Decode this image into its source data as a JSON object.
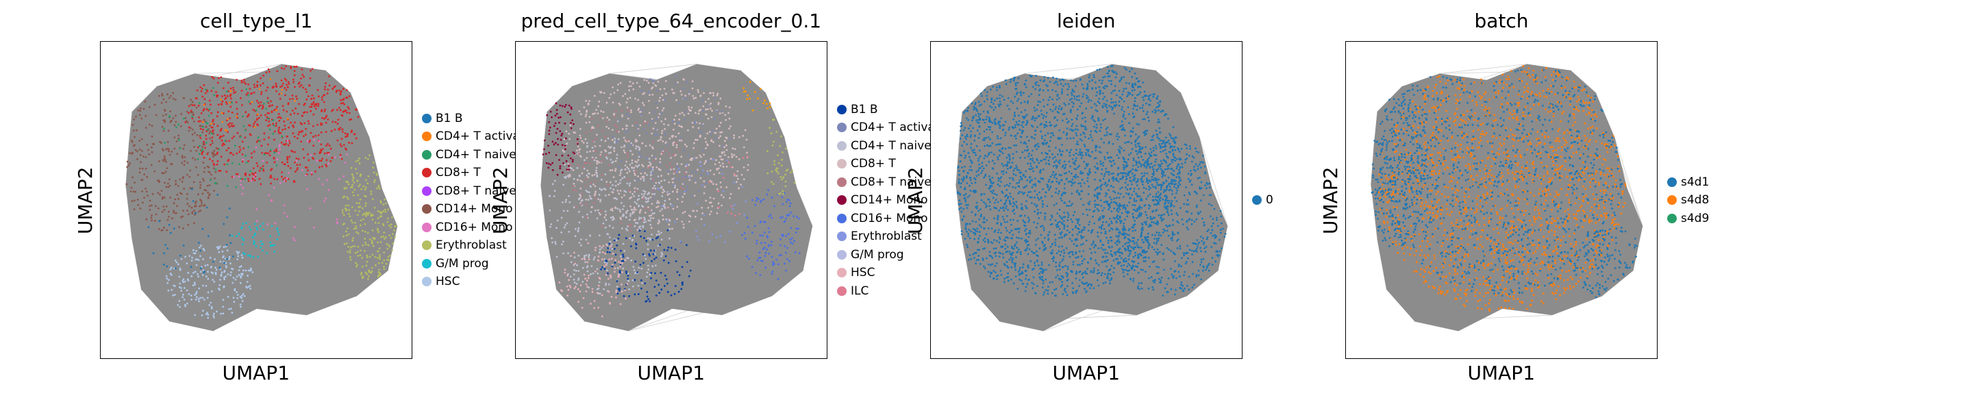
{
  "chart_data": [
    {
      "type": "scatter",
      "title": "cell_type_l1",
      "xlabel": "UMAP1",
      "ylabel": "UMAP2",
      "grid": false,
      "legend_position": "right",
      "background_color": "#8c8c8c",
      "legend": [
        {
          "label": "B1 B",
          "color": "#1f77b4"
        },
        {
          "label": "CD4+ T activa",
          "color": "#ff7f0e"
        },
        {
          "label": "CD4+ T naive",
          "color": "#279e68"
        },
        {
          "label": "CD8+ T",
          "color": "#d62728"
        },
        {
          "label": "CD8+ T naive",
          "color": "#aa40fc"
        },
        {
          "label": "CD14+ Mono",
          "color": "#8c564b"
        },
        {
          "label": "CD16+ Mono",
          "color": "#e377c2"
        },
        {
          "label": "Erythroblast",
          "color": "#b5bd61"
        },
        {
          "label": "G/M prog",
          "color": "#17becf"
        },
        {
          "label": "HSC",
          "color": "#aec7e8"
        }
      ],
      "regions": [
        {
          "color": "#d62728",
          "x": 0.55,
          "y": 0.25,
          "rx": 0.28,
          "ry": 0.2,
          "density": 0.55
        },
        {
          "color": "#8c564b",
          "x": 0.22,
          "y": 0.38,
          "rx": 0.16,
          "ry": 0.22,
          "density": 0.45
        },
        {
          "color": "#aec7e8",
          "x": 0.35,
          "y": 0.75,
          "rx": 0.14,
          "ry": 0.12,
          "density": 0.6
        },
        {
          "color": "#b5bd61",
          "x": 0.86,
          "y": 0.55,
          "rx": 0.09,
          "ry": 0.2,
          "density": 0.7
        },
        {
          "color": "#17becf",
          "x": 0.5,
          "y": 0.62,
          "rx": 0.08,
          "ry": 0.06,
          "density": 0.5
        },
        {
          "color": "#279e68",
          "x": 0.4,
          "y": 0.3,
          "rx": 0.2,
          "ry": 0.16,
          "density": 0.1
        },
        {
          "color": "#e377c2",
          "x": 0.62,
          "y": 0.45,
          "rx": 0.2,
          "ry": 0.18,
          "density": 0.08
        },
        {
          "color": "#1f77b4",
          "x": 0.3,
          "y": 0.6,
          "rx": 0.15,
          "ry": 0.14,
          "density": 0.08
        },
        {
          "color": "#ff7f0e",
          "x": 0.45,
          "y": 0.2,
          "rx": 0.18,
          "ry": 0.1,
          "density": 0.06
        }
      ]
    },
    {
      "type": "scatter",
      "title": "pred_cell_type_64_encoder_0.1",
      "xlabel": "UMAP1",
      "ylabel": "UMAP2",
      "grid": false,
      "legend_position": "right",
      "background_color": "#8c8c8c",
      "legend": [
        {
          "label": "B1 B",
          "color": "#023fa5"
        },
        {
          "label": "CD4+ T activa",
          "color": "#7d87b9"
        },
        {
          "label": "CD4+ T naive",
          "color": "#bec1d4"
        },
        {
          "label": "CD8+ T",
          "color": "#d6bcc0"
        },
        {
          "label": "CD8+ T naive",
          "color": "#bb7784"
        },
        {
          "label": "CD14+ Mono",
          "color": "#8e063b"
        },
        {
          "label": "CD16+ Mono",
          "color": "#4a6fe3"
        },
        {
          "label": "Erythroblast",
          "color": "#8595e1"
        },
        {
          "label": "G/M prog",
          "color": "#b5bbe3"
        },
        {
          "label": "HSC",
          "color": "#e6afb9"
        },
        {
          "label": "ILC",
          "color": "#e07b91"
        }
      ],
      "regions": [
        {
          "color": "#d6bcc0",
          "x": 0.45,
          "y": 0.35,
          "rx": 0.3,
          "ry": 0.25,
          "density": 0.4
        },
        {
          "color": "#bec1d4",
          "x": 0.3,
          "y": 0.55,
          "rx": 0.2,
          "ry": 0.25,
          "density": 0.35
        },
        {
          "color": "#8e063b",
          "x": 0.14,
          "y": 0.3,
          "rx": 0.06,
          "ry": 0.12,
          "density": 0.5
        },
        {
          "color": "#023fa5",
          "x": 0.42,
          "y": 0.7,
          "rx": 0.15,
          "ry": 0.12,
          "density": 0.3
        },
        {
          "color": "#4a6fe3",
          "x": 0.82,
          "y": 0.6,
          "rx": 0.1,
          "ry": 0.15,
          "density": 0.35
        },
        {
          "color": "#ff9900",
          "x": 0.8,
          "y": 0.15,
          "rx": 0.08,
          "ry": 0.08,
          "density": 0.4
        },
        {
          "color": "#b5bd61",
          "x": 0.86,
          "y": 0.35,
          "rx": 0.06,
          "ry": 0.15,
          "density": 0.3
        },
        {
          "color": "#e6afb9",
          "x": 0.25,
          "y": 0.75,
          "rx": 0.12,
          "ry": 0.12,
          "density": 0.3
        },
        {
          "color": "#7d87b9",
          "x": 0.5,
          "y": 0.3,
          "rx": 0.2,
          "ry": 0.2,
          "density": 0.12
        },
        {
          "color": "#bb7784",
          "x": 0.35,
          "y": 0.4,
          "rx": 0.2,
          "ry": 0.2,
          "density": 0.1
        },
        {
          "color": "#8595e1",
          "x": 0.6,
          "y": 0.5,
          "rx": 0.15,
          "ry": 0.15,
          "density": 0.08
        },
        {
          "color": "#e07b91",
          "x": 0.7,
          "y": 0.45,
          "rx": 0.1,
          "ry": 0.1,
          "density": 0.06
        }
      ]
    },
    {
      "type": "scatter",
      "title": "leiden",
      "xlabel": "UMAP1",
      "ylabel": "UMAP2",
      "grid": false,
      "legend_position": "right",
      "background_color": "#8c8c8c",
      "legend": [
        {
          "label": "0",
          "color": "#1f77b4"
        }
      ],
      "regions": [
        {
          "color": "#1f77b4",
          "x": 0.4,
          "y": 0.4,
          "rx": 0.4,
          "ry": 0.4,
          "density": 0.85
        },
        {
          "color": "#1f77b4",
          "x": 0.75,
          "y": 0.55,
          "rx": 0.2,
          "ry": 0.25,
          "density": 0.6
        }
      ]
    },
    {
      "type": "scatter",
      "title": "batch",
      "xlabel": "UMAP1",
      "ylabel": "UMAP2",
      "grid": false,
      "legend_position": "right",
      "background_color": "#8c8c8c",
      "legend": [
        {
          "label": "s4d1",
          "color": "#1f77b4"
        },
        {
          "label": "s4d8",
          "color": "#ff7f0e"
        },
        {
          "label": "s4d9",
          "color": "#279e68"
        }
      ],
      "regions": [
        {
          "color": "#ff7f0e",
          "x": 0.5,
          "y": 0.45,
          "rx": 0.4,
          "ry": 0.4,
          "density": 0.5
        },
        {
          "color": "#1f77b4",
          "x": 0.15,
          "y": 0.4,
          "rx": 0.12,
          "ry": 0.25,
          "density": 0.6
        },
        {
          "color": "#1f77b4",
          "x": 0.5,
          "y": 0.4,
          "rx": 0.4,
          "ry": 0.4,
          "density": 0.3
        },
        {
          "color": "#1f77b4",
          "x": 0.85,
          "y": 0.7,
          "rx": 0.12,
          "ry": 0.12,
          "density": 0.5
        }
      ]
    }
  ]
}
